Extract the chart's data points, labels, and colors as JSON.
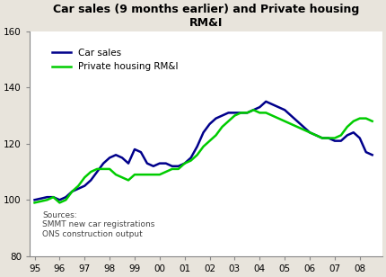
{
  "title": "Car sales (9 months earlier) and Private housing\nRM&I",
  "ylim": [
    80,
    160
  ],
  "yticks": [
    80,
    100,
    120,
    140,
    160
  ],
  "xlim": [
    1994.8,
    2008.9
  ],
  "xlabel": "",
  "ylabel": "",
  "background_color": "#e8e4dc",
  "plot_background_color": "#ffffff",
  "source_text": "Sources:\nSMMT new car registrations\nONS construction output",
  "car_sales_color": "#00008B",
  "housing_color": "#00CC00",
  "car_sales_label": "Car sales",
  "housing_label": "Private housing RM&I",
  "car_sales_x": [
    1995,
    1995.25,
    1995.5,
    1995.75,
    1996,
    1996.25,
    1996.5,
    1996.75,
    1997,
    1997.25,
    1997.5,
    1997.75,
    1998,
    1998.25,
    1998.5,
    1998.75,
    1999,
    1999.25,
    1999.5,
    1999.75,
    2000,
    2000.25,
    2000.5,
    2000.75,
    2001,
    2001.25,
    2001.5,
    2001.75,
    2002,
    2002.25,
    2002.5,
    2002.75,
    2003,
    2003.25,
    2003.5,
    2003.75,
    2004,
    2004.25,
    2004.5,
    2004.75,
    2005,
    2005.25,
    2005.5,
    2005.75,
    2006,
    2006.25,
    2006.5,
    2006.75,
    2007,
    2007.25,
    2007.5,
    2007.75,
    2008,
    2008.25,
    2008.5
  ],
  "car_sales_y": [
    100,
    100.5,
    101,
    101,
    100,
    101,
    103,
    104,
    105,
    107,
    110,
    113,
    115,
    116,
    115,
    113,
    118,
    117,
    113,
    112,
    113,
    113,
    112,
    112,
    113,
    115,
    119,
    124,
    127,
    129,
    130,
    131,
    131,
    131,
    131,
    132,
    133,
    135,
    134,
    133,
    132,
    130,
    128,
    126,
    124,
    123,
    122,
    122,
    121,
    121,
    123,
    124,
    122,
    117,
    116
  ],
  "housing_x": [
    1995,
    1995.25,
    1995.5,
    1995.75,
    1996,
    1996.25,
    1996.5,
    1996.75,
    1997,
    1997.25,
    1997.5,
    1997.75,
    1998,
    1998.25,
    1998.5,
    1998.75,
    1999,
    1999.25,
    1999.5,
    1999.75,
    2000,
    2000.25,
    2000.5,
    2000.75,
    2001,
    2001.25,
    2001.5,
    2001.75,
    2002,
    2002.25,
    2002.5,
    2002.75,
    2003,
    2003.25,
    2003.5,
    2003.75,
    2004,
    2004.25,
    2004.5,
    2004.75,
    2005,
    2005.25,
    2005.5,
    2005.75,
    2006,
    2006.25,
    2006.5,
    2006.75,
    2007,
    2007.25,
    2007.5,
    2007.75,
    2008,
    2008.25,
    2008.5
  ],
  "housing_y": [
    99,
    99.5,
    100,
    101,
    99,
    100,
    103,
    105,
    108,
    110,
    111,
    111,
    111,
    109,
    108,
    107,
    109,
    109,
    109,
    109,
    109,
    110,
    111,
    111,
    113,
    114,
    116,
    119,
    121,
    123,
    126,
    128,
    130,
    131,
    131,
    132,
    131,
    131,
    130,
    129,
    128,
    127,
    126,
    125,
    124,
    123,
    122,
    122,
    122,
    123,
    126,
    128,
    129,
    129,
    128
  ],
  "xticks": [
    1995,
    1996,
    1997,
    1998,
    1999,
    2000,
    2001,
    2002,
    2003,
    2004,
    2005,
    2006,
    2007,
    2008
  ],
  "xticklabels": [
    "95",
    "96",
    "97",
    "98",
    "99",
    "00",
    "01",
    "02",
    "03",
    "04",
    "05",
    "06",
    "07",
    "08"
  ]
}
